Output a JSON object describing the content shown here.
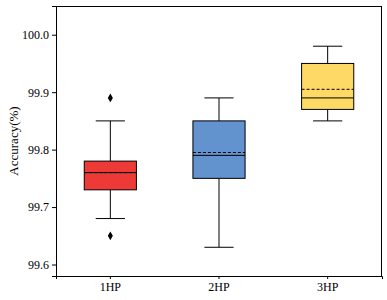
{
  "chart_data": {
    "type": "box",
    "y_label": "Accuracy(%)",
    "categories": [
      "1HP",
      "2HP",
      "3HP"
    ],
    "boxes": [
      {
        "min": 99.68,
        "q1": 99.73,
        "median": 99.76,
        "mean": 99.76,
        "q3": 99.78,
        "max": 99.85,
        "outliers": [
          99.89,
          99.65
        ]
      },
      {
        "min": 99.63,
        "q1": 99.75,
        "median": 99.79,
        "mean": 99.795,
        "q3": 99.85,
        "max": 99.89,
        "outliers": []
      },
      {
        "min": 99.85,
        "q1": 99.87,
        "median": 99.89,
        "mean": 99.905,
        "q3": 99.95,
        "max": 99.98,
        "outliers": []
      }
    ],
    "colors": [
      "#ee3a36",
      "#6393cf",
      "#ffd966"
    ],
    "marker": "diamond",
    "ylim": [
      99.58,
      100.05
    ],
    "yticks": [
      99.6,
      99.7,
      99.8,
      99.9,
      {
        "value": 100,
        "label": "100.0"
      }
    ]
  }
}
